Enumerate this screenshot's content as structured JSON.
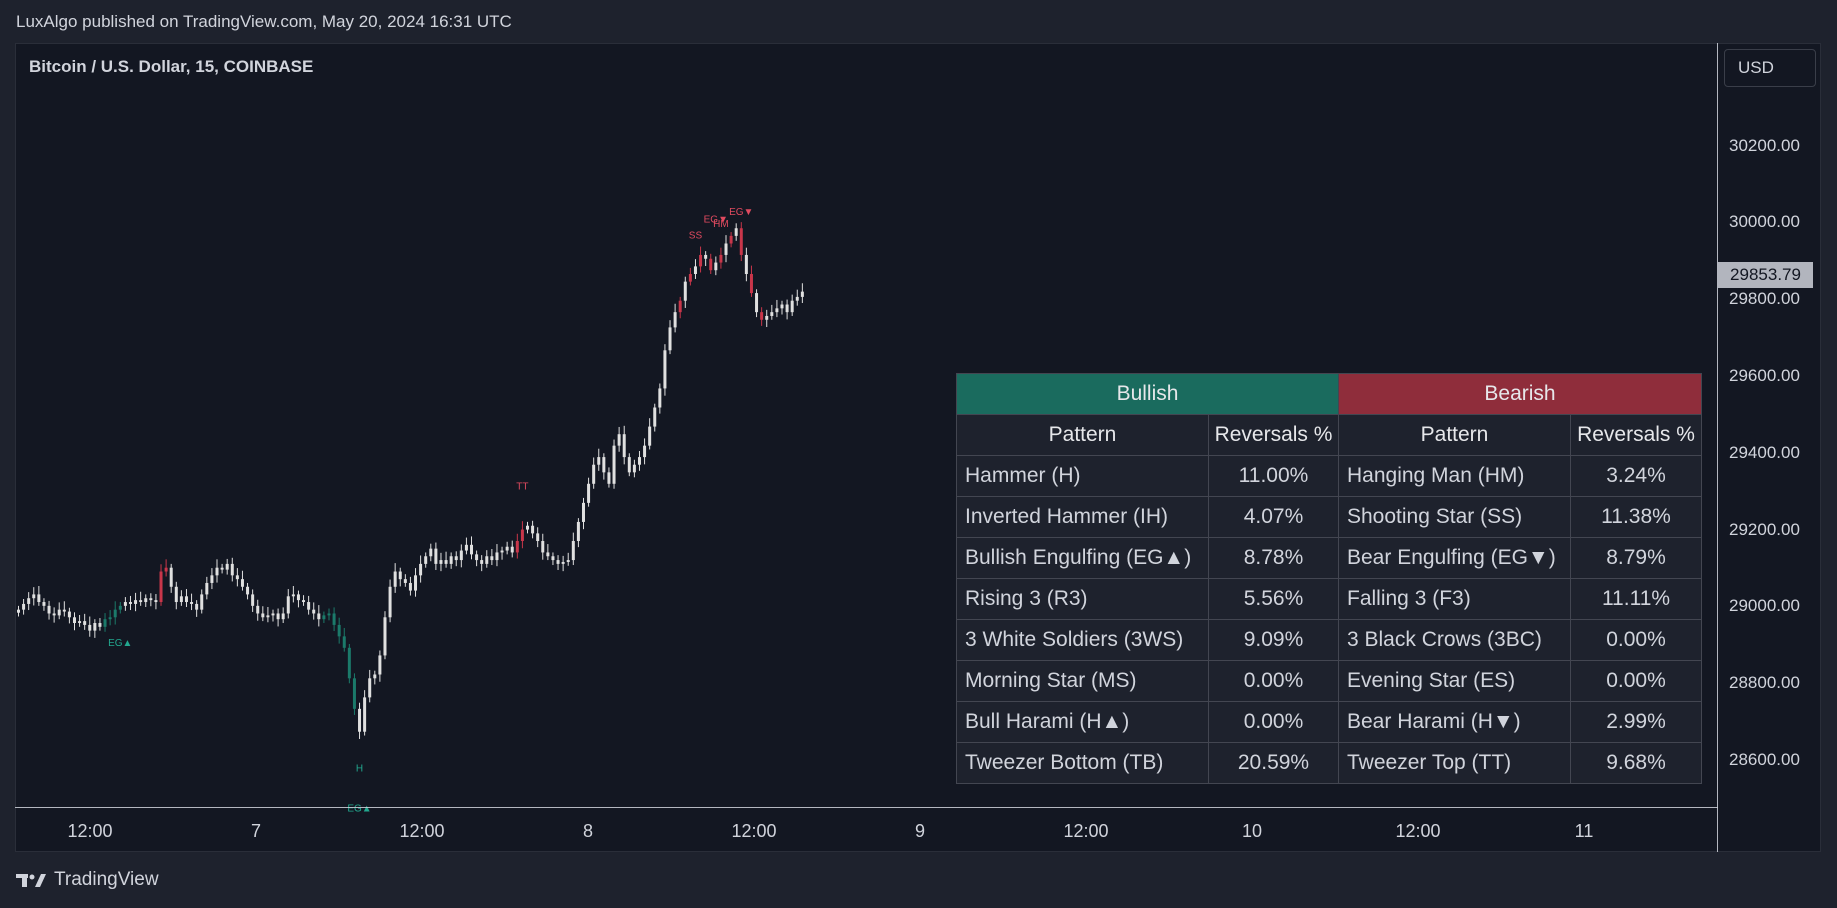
{
  "header": {
    "published": "LuxAlgo published on TradingView.com, May 20, 2024 16:31 UTC"
  },
  "symbol": {
    "title": "Bitcoin / U.S. Dollar, 15, COINBASE"
  },
  "currency": "USD",
  "current_price": "29853.79",
  "brand": "TradingView",
  "colors": {
    "bull": "#1a6b5e",
    "bear": "#8f2d3b",
    "candle_up": "#e0e0e0",
    "candle_bear_pattern": "#c9364a",
    "candle_bull_pattern": "#1b7a6a",
    "bg": "#131722"
  },
  "price_axis": [
    "30200.00",
    "30000.00",
    "29800.00",
    "29600.00",
    "29400.00",
    "29200.00",
    "29000.00",
    "28800.00",
    "28600.00"
  ],
  "time_axis": [
    "12:00",
    "7",
    "12:00",
    "8",
    "12:00",
    "9",
    "12:00",
    "10",
    "12:00",
    "11"
  ],
  "table": {
    "bull_title": "Bullish",
    "bear_title": "Bearish",
    "col_pattern": "Pattern",
    "col_rev": "Reversals %",
    "rows": [
      {
        "bull": "Hammer (H)",
        "bull_pct": "11.00%",
        "bear": "Hanging Man (HM)",
        "bear_pct": "3.24%"
      },
      {
        "bull": "Inverted Hammer (IH)",
        "bull_pct": "4.07%",
        "bear": "Shooting Star (SS)",
        "bear_pct": "11.38%"
      },
      {
        "bull": "Bullish Engulfing (EG▲)",
        "bull_pct": "8.78%",
        "bear": "Bear Engulfing (EG▼)",
        "bear_pct": "8.79%"
      },
      {
        "bull": "Rising 3 (R3)",
        "bull_pct": "5.56%",
        "bear": "Falling 3 (F3)",
        "bear_pct": "11.11%"
      },
      {
        "bull": "3 White Soldiers (3WS)",
        "bull_pct": "9.09%",
        "bear": "3 Black Crows (3BC)",
        "bear_pct": "0.00%"
      },
      {
        "bull": "Morning Star (MS)",
        "bull_pct": "0.00%",
        "bear": "Evening Star (ES)",
        "bear_pct": "0.00%"
      },
      {
        "bull": "Bull Harami (H▲)",
        "bull_pct": "0.00%",
        "bear": "Bear Harami (H▼)",
        "bear_pct": "2.99%"
      },
      {
        "bull": "Tweezer Bottom (TB)",
        "bull_pct": "20.59%",
        "bear": "Tweezer Top (TT)",
        "bear_pct": "9.68%"
      }
    ]
  },
  "chart_data": {
    "type": "line",
    "title": "Bitcoin / U.S. Dollar, 15, COINBASE",
    "xlabel": "",
    "ylabel": "",
    "ylim": [
      28500,
      30330
    ],
    "y_ticks": [
      30200,
      30000,
      29800,
      29600,
      29400,
      29200,
      29000,
      28800,
      28600
    ],
    "x_ticks": [
      "12:00",
      "7",
      "12:00",
      "8",
      "12:00",
      "9",
      "12:00",
      "10",
      "12:00",
      "11"
    ],
    "series": [
      {
        "values": [
          29020,
          29035,
          29050,
          29060,
          29040,
          29030,
          29010,
          29005,
          29020,
          29015,
          29000,
          28985,
          28990,
          28980,
          28965,
          28985,
          28975,
          28995,
          29000,
          29020,
          29030,
          29040,
          29035,
          29045,
          29040,
          29050,
          29045,
          29040,
          29120,
          29130,
          29080,
          29040,
          29055,
          29040,
          29035,
          29020,
          29060,
          29090,
          29110,
          29130,
          29125,
          29140,
          29110,
          29100,
          29080,
          29060,
          29030,
          29010,
          29000,
          29005,
          29010,
          28995,
          29010,
          29055,
          29060,
          29045,
          29040,
          29020,
          29010,
          28995,
          29005,
          29010,
          28980,
          28950,
          28920,
          28840,
          28760,
          28700,
          28790,
          28840,
          28850,
          28900,
          29000,
          29080,
          29120,
          29100,
          29090,
          29070,
          29110,
          29140,
          29160,
          29180,
          29140,
          29150,
          29140,
          29160,
          29150,
          29175,
          29190,
          29165,
          29150,
          29140,
          29160,
          29150,
          29170,
          29175,
          29185,
          29170,
          29200,
          29230,
          29240,
          29220,
          29200,
          29170,
          29160,
          29150,
          29140,
          29145,
          29150,
          29200,
          29250,
          29300,
          29350,
          29400,
          29420,
          29380,
          29350,
          29450,
          29480,
          29420,
          29380,
          29400,
          29420,
          29450,
          29500,
          29550,
          29600,
          29700,
          29760,
          29800,
          29830,
          29880,
          29900,
          29920,
          29950,
          29940,
          29910,
          29930,
          29950,
          29980,
          30000,
          30020,
          29950,
          29900,
          29850,
          29800,
          29780,
          29790,
          29800,
          29810,
          29820,
          29800,
          29830,
          29840,
          29853.79
        ]
      }
    ],
    "annotations": [
      {
        "text": "EG▲",
        "side": "below",
        "bar": 20
      },
      {
        "text": "H",
        "side": "below",
        "bar": 67
      },
      {
        "text": "EG▲",
        "side": "below",
        "bar": 67
      },
      {
        "text": "TT",
        "side": "above",
        "bar": 99
      },
      {
        "text": "SS",
        "side": "above",
        "bar": 133
      },
      {
        "text": "EG▼",
        "side": "above",
        "bar": 137
      },
      {
        "text": "HM",
        "side": "above",
        "bar": 138
      },
      {
        "text": "EG▼",
        "side": "above",
        "bar": 142
      }
    ]
  }
}
